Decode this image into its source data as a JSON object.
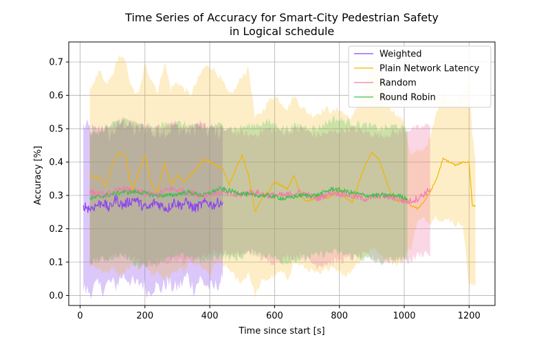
{
  "chart_data": {
    "type": "line",
    "title": "Time Series of Accuracy for Smart-City Pedestrian Safety",
    "subtitle": "in Logical schedule",
    "xlabel": "Time since start [s]",
    "ylabel": "Accuracy [%]",
    "xlim": [
      -35,
      1280
    ],
    "ylim": [
      -0.03,
      0.76
    ],
    "xticks": [
      0,
      200,
      400,
      600,
      800,
      1000,
      1200
    ],
    "yticks": [
      0.0,
      0.1,
      0.2,
      0.3,
      0.4,
      0.5,
      0.6,
      0.7
    ],
    "xtick_labels": [
      "0",
      "200",
      "400",
      "600",
      "800",
      "1000",
      "1200"
    ],
    "ytick_labels": [
      "0.0",
      "0.1",
      "0.2",
      "0.3",
      "0.4",
      "0.5",
      "0.6",
      "0.7"
    ],
    "grid": true,
    "legend_position": "top-right",
    "series": [
      {
        "name": "Weighted",
        "color": "#8b44f0",
        "x": [
          10,
          30,
          50,
          70,
          90,
          110,
          130,
          150,
          170,
          190,
          210,
          230,
          250,
          270,
          290,
          310,
          330,
          350,
          370,
          390,
          410,
          430,
          440
        ],
        "mean": [
          0.27,
          0.26,
          0.27,
          0.28,
          0.26,
          0.29,
          0.27,
          0.28,
          0.29,
          0.27,
          0.26,
          0.28,
          0.27,
          0.26,
          0.28,
          0.27,
          0.28,
          0.26,
          0.27,
          0.28,
          0.27,
          0.28,
          0.28
        ],
        "lower": [
          0.02,
          0.01,
          0.03,
          0.02,
          0.04,
          0.03,
          0.06,
          0.05,
          0.03,
          0.04,
          0.01,
          0.03,
          0.02,
          0.04,
          0.02,
          0.03,
          0.06,
          0.02,
          0.05,
          0.03,
          0.02,
          0.04,
          0.05
        ],
        "upper": [
          0.51,
          0.5,
          0.49,
          0.51,
          0.48,
          0.5,
          0.52,
          0.51,
          0.49,
          0.5,
          0.51,
          0.48,
          0.5,
          0.49,
          0.51,
          0.5,
          0.49,
          0.5,
          0.51,
          0.49,
          0.5,
          0.49,
          0.5
        ]
      },
      {
        "name": "Plain Network Latency",
        "color": "#f5b300",
        "x": [
          30,
          60,
          80,
          100,
          120,
          140,
          160,
          180,
          200,
          220,
          240,
          260,
          280,
          300,
          320,
          340,
          360,
          380,
          400,
          420,
          440,
          460,
          480,
          500,
          520,
          540,
          560,
          580,
          600,
          620,
          640,
          660,
          680,
          700,
          720,
          740,
          760,
          780,
          800,
          820,
          840,
          860,
          880,
          900,
          920,
          940,
          960,
          980,
          1000,
          1020,
          1040,
          1060,
          1080,
          1100,
          1120,
          1140,
          1160,
          1180,
          1200,
          1210,
          1220
        ],
        "mean": [
          0.36,
          0.35,
          0.33,
          0.39,
          0.43,
          0.42,
          0.31,
          0.37,
          0.42,
          0.33,
          0.31,
          0.4,
          0.33,
          0.36,
          0.34,
          0.36,
          0.38,
          0.41,
          0.4,
          0.39,
          0.38,
          0.33,
          0.38,
          0.42,
          0.36,
          0.25,
          0.29,
          0.31,
          0.34,
          0.33,
          0.32,
          0.36,
          0.3,
          0.28,
          0.29,
          0.3,
          0.29,
          0.3,
          0.32,
          0.29,
          0.28,
          0.34,
          0.39,
          0.43,
          0.41,
          0.36,
          0.3,
          0.28,
          0.29,
          0.27,
          0.26,
          0.28,
          0.31,
          0.35,
          0.41,
          0.4,
          0.39,
          0.4,
          0.4,
          0.27,
          0.27
        ],
        "lower": [
          0.09,
          0.08,
          0.07,
          0.08,
          0.06,
          0.07,
          0.09,
          0.08,
          0.1,
          0.06,
          0.07,
          0.05,
          0.06,
          0.08,
          0.07,
          0.1,
          0.09,
          0.08,
          0.06,
          0.1,
          0.09,
          0.08,
          0.05,
          0.04,
          0.07,
          0.0,
          0.04,
          0.05,
          0.06,
          0.07,
          0.05,
          0.1,
          0.09,
          0.08,
          0.07,
          0.06,
          0.08,
          0.09,
          0.07,
          0.06,
          0.08,
          0.1,
          0.12,
          0.14,
          0.13,
          0.11,
          0.1,
          0.09,
          0.12,
          0.14,
          0.22,
          0.23,
          0.22,
          0.24,
          0.22,
          0.23,
          0.21,
          0.22,
          0.03,
          0.03,
          0.03
        ],
        "upper": [
          0.62,
          0.67,
          0.63,
          0.66,
          0.72,
          0.7,
          0.62,
          0.6,
          0.69,
          0.65,
          0.61,
          0.7,
          0.62,
          0.64,
          0.62,
          0.6,
          0.64,
          0.68,
          0.69,
          0.67,
          0.64,
          0.6,
          0.62,
          0.66,
          0.68,
          0.53,
          0.55,
          0.58,
          0.6,
          0.58,
          0.56,
          0.6,
          0.57,
          0.55,
          0.54,
          0.55,
          0.56,
          0.55,
          0.56,
          0.54,
          0.53,
          0.58,
          0.62,
          0.69,
          0.67,
          0.6,
          0.56,
          0.54,
          0.52,
          0.42,
          0.43,
          0.44,
          0.47,
          0.55,
          0.62,
          0.58,
          0.58,
          0.62,
          0.63,
          0.49,
          0.4
        ]
      },
      {
        "name": "Random",
        "color": "#f27ca9",
        "x": [
          30,
          80,
          130,
          180,
          230,
          280,
          330,
          380,
          430,
          480,
          530,
          580,
          630,
          680,
          730,
          780,
          830,
          880,
          930,
          980,
          1010,
          1040,
          1070,
          1080
        ],
        "mean": [
          0.31,
          0.3,
          0.32,
          0.31,
          0.3,
          0.32,
          0.31,
          0.3,
          0.31,
          0.3,
          0.31,
          0.3,
          0.3,
          0.31,
          0.29,
          0.31,
          0.3,
          0.29,
          0.3,
          0.29,
          0.28,
          0.29,
          0.31,
          0.32
        ],
        "lower": [
          0.1,
          0.11,
          0.12,
          0.1,
          0.09,
          0.11,
          0.1,
          0.12,
          0.13,
          0.12,
          0.13,
          0.1,
          0.11,
          0.12,
          0.09,
          0.1,
          0.11,
          0.12,
          0.1,
          0.11,
          0.1,
          0.12,
          0.13,
          0.12
        ],
        "upper": [
          0.49,
          0.5,
          0.52,
          0.51,
          0.5,
          0.52,
          0.5,
          0.51,
          0.5,
          0.49,
          0.48,
          0.5,
          0.49,
          0.5,
          0.48,
          0.49,
          0.5,
          0.49,
          0.48,
          0.49,
          0.5,
          0.5,
          0.51,
          0.51
        ]
      },
      {
        "name": "Round Robin",
        "color": "#3cbf4f",
        "x": [
          30,
          80,
          130,
          180,
          230,
          280,
          330,
          380,
          430,
          480,
          530,
          580,
          630,
          680,
          730,
          780,
          830,
          880,
          930,
          980,
          1010
        ],
        "mean": [
          0.29,
          0.3,
          0.31,
          0.31,
          0.3,
          0.3,
          0.31,
          0.3,
          0.32,
          0.31,
          0.3,
          0.3,
          0.29,
          0.3,
          0.3,
          0.32,
          0.31,
          0.3,
          0.3,
          0.3,
          0.29
        ],
        "lower": [
          0.1,
          0.11,
          0.12,
          0.09,
          0.1,
          0.11,
          0.12,
          0.1,
          0.12,
          0.11,
          0.13,
          0.12,
          0.1,
          0.11,
          0.12,
          0.13,
          0.12,
          0.11,
          0.1,
          0.11,
          0.1
        ],
        "upper": [
          0.48,
          0.5,
          0.53,
          0.51,
          0.5,
          0.52,
          0.51,
          0.5,
          0.51,
          0.5,
          0.51,
          0.52,
          0.5,
          0.51,
          0.5,
          0.53,
          0.52,
          0.51,
          0.5,
          0.51,
          0.49
        ]
      }
    ]
  }
}
